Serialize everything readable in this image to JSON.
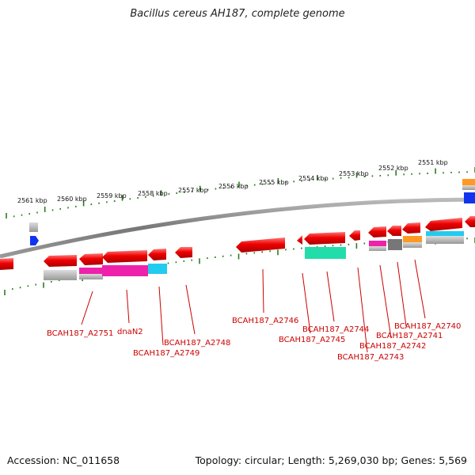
{
  "title": "Bacillus cereus AH187, complete genome",
  "footer": {
    "accession": "Accession: NC_011658",
    "summary": "Topology: circular; Length: 5,269,030 bp; Genes: 5,569"
  },
  "kbp_labels": [
    "2561 kbp",
    "2560 kbp",
    "2559 kbp",
    "2558 kbp",
    "2557 kbp",
    "2556 kbp",
    "2555 kbp",
    "2554 kbp",
    "2553 kbp",
    "2552 kbp",
    "2551 kbp"
  ],
  "gene_labels": [
    "BCAH187_A2751",
    "dnaN2",
    "BCAH187_A2749",
    "BCAH187_A2748",
    "BCAH187_A2746",
    "BCAH187_A2745",
    "BCAH187_A2744",
    "BCAH187_A2743",
    "BCAH187_A2742",
    "BCAH187_A2741",
    "BCAH187_A2740"
  ],
  "colors": {
    "gene": "#ee0000",
    "backbone": "#888888",
    "tick": "#2e7d1f",
    "leader": "#cc0000",
    "magenta": "#ee22aa",
    "cyan": "#22ccee",
    "teal": "#22ddaa",
    "orange": "#ff9922",
    "blue": "#1133ee",
    "gray": "#aaaaaa"
  }
}
